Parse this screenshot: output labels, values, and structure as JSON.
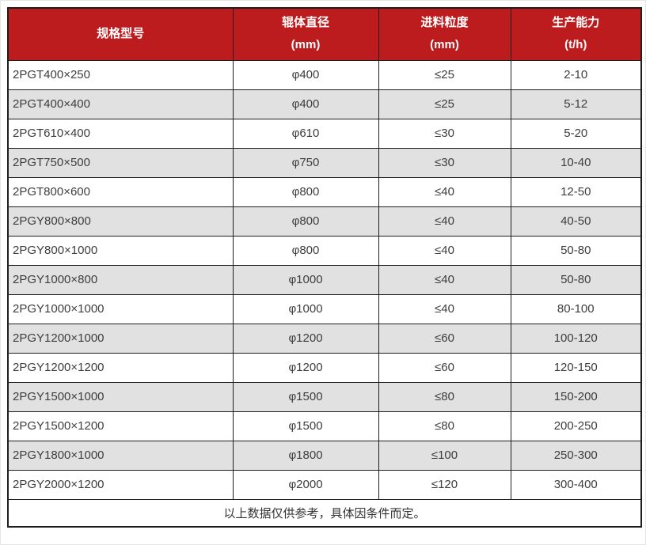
{
  "table": {
    "columns": [
      {
        "id": "model",
        "lines": [
          "规格型号"
        ]
      },
      {
        "id": "roller-diameter",
        "lines": [
          "辊体直径",
          "(mm)"
        ]
      },
      {
        "id": "feed-size",
        "lines": [
          "进料粒度",
          "(mm)"
        ]
      },
      {
        "id": "capacity",
        "lines": [
          "生产能力",
          "(t/h)"
        ]
      }
    ],
    "rows": [
      [
        "2PGT400×250",
        "φ400",
        "≤25",
        "2-10"
      ],
      [
        "2PGT400×400",
        "φ400",
        "≤25",
        "5-12"
      ],
      [
        "2PGT610×400",
        "φ610",
        "≤30",
        "5-20"
      ],
      [
        "2PGT750×500",
        "φ750",
        "≤30",
        "10-40"
      ],
      [
        "2PGT800×600",
        "φ800",
        "≤40",
        "12-50"
      ],
      [
        "2PGY800×800",
        "φ800",
        "≤40",
        "40-50"
      ],
      [
        "2PGY800×1000",
        "φ800",
        "≤40",
        "50-80"
      ],
      [
        "2PGY1000×800",
        "φ1000",
        "≤40",
        "50-80"
      ],
      [
        "2PGY1000×1000",
        "φ1000",
        "≤40",
        "80-100"
      ],
      [
        "2PGY1200×1000",
        "φ1200",
        "≤60",
        "100-120"
      ],
      [
        "2PGY1200×1200",
        "φ1200",
        "≤60",
        "120-150"
      ],
      [
        "2PGY1500×1000",
        "φ1500",
        "≤80",
        "150-200"
      ],
      [
        "2PGY1500×1200",
        "φ1500",
        "≤80",
        "200-250"
      ],
      [
        "2PGY1800×1000",
        "φ1800",
        "≤100",
        "250-300"
      ],
      [
        "2PGY2000×1200",
        "φ2000",
        "≤120",
        "300-400"
      ]
    ],
    "footer_note": "以上数据仅供参考，具体因条件而定。"
  },
  "colors": {
    "header_bg": "#bd1c1f",
    "header_text": "#ffffff",
    "row_alt_bg": "#e1e1e1",
    "border": "#1f1f1f",
    "body_text": "#3d3d3d"
  }
}
